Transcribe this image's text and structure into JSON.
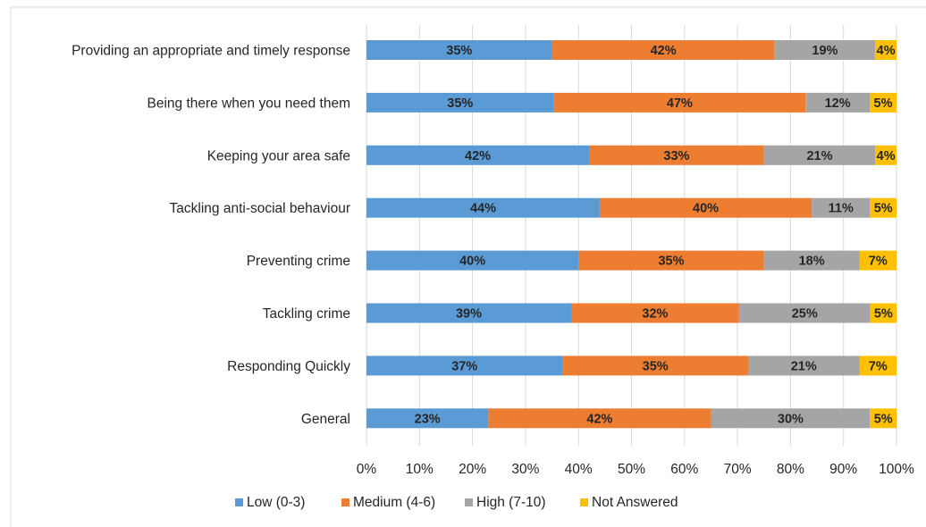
{
  "chart_data": {
    "type": "bar",
    "orientation": "horizontal",
    "stacked": true,
    "categories": [
      "Providing an appropriate and timely response",
      "Being there when you need them",
      "Keeping your area safe",
      "Tackling anti-social behaviour",
      "Preventing crime",
      "Tackling crime",
      "Responding Quickly",
      "General"
    ],
    "series": [
      {
        "name": "Low (0-3)",
        "color": "#5b9bd5",
        "values": [
          35,
          35,
          42,
          44,
          40,
          39,
          37,
          23
        ]
      },
      {
        "name": "Medium (4-6)",
        "color": "#ed7d31",
        "values": [
          42,
          47,
          33,
          40,
          35,
          32,
          35,
          42
        ]
      },
      {
        "name": "High (7-10)",
        "color": "#a5a5a5",
        "values": [
          19,
          12,
          21,
          11,
          18,
          25,
          21,
          30
        ]
      },
      {
        "name": "Not Answered",
        "color": "#ffc000",
        "values": [
          4,
          5,
          4,
          5,
          7,
          5,
          7,
          5
        ]
      }
    ],
    "x_ticks": [
      "0%",
      "10%",
      "20%",
      "30%",
      "40%",
      "50%",
      "60%",
      "70%",
      "80%",
      "90%",
      "100%"
    ],
    "xlim": [
      0,
      100
    ],
    "grid": "vertical",
    "legend_position": "bottom"
  }
}
